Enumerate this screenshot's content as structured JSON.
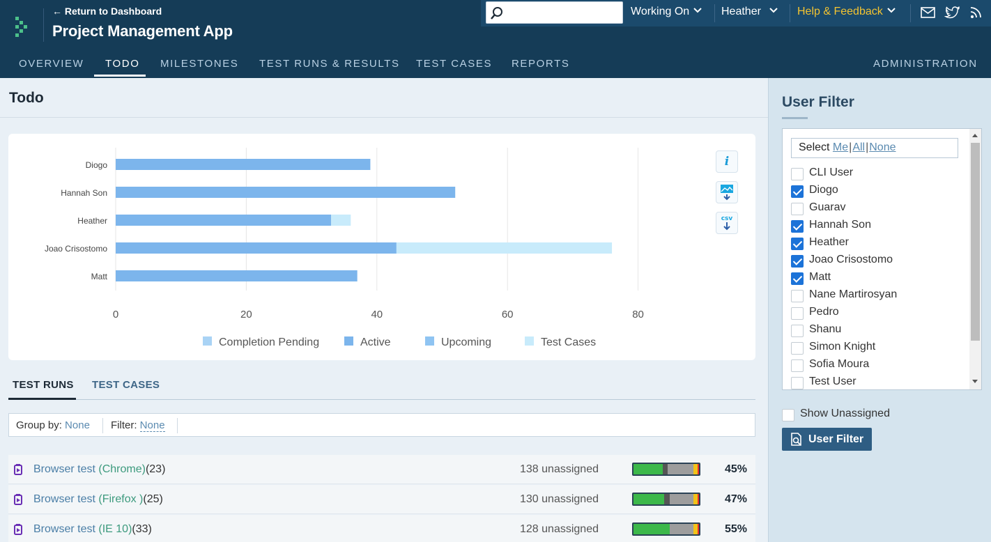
{
  "header": {
    "back_link": "← Return to Dashboard",
    "app_title": "Project Management App"
  },
  "topbar": {
    "search_placeholder": "",
    "working_on": "Working On",
    "user": "Heather",
    "help": "Help & Feedback",
    "icons": [
      "mail-icon",
      "twitter-icon",
      "rss-icon"
    ]
  },
  "nav": {
    "tabs": [
      {
        "label": "OVERVIEW",
        "active": false
      },
      {
        "label": "TODO",
        "active": true
      },
      {
        "label": "MILESTONES",
        "active": false
      },
      {
        "label": "TEST RUNS & RESULTS",
        "active": false
      },
      {
        "label": "TEST CASES",
        "active": false
      },
      {
        "label": "REPORTS",
        "active": false
      }
    ],
    "admin": "ADMINISTRATION"
  },
  "page": {
    "title": "Todo"
  },
  "chart_data": {
    "type": "bar",
    "orientation": "horizontal",
    "stacked": true,
    "categories": [
      "Diogo",
      "Hannah Son",
      "Heather",
      "Joao Crisostomo",
      "Matt"
    ],
    "series": [
      {
        "name": "Completion Pending",
        "color": "#a9d3f5",
        "values": [
          0,
          0,
          0,
          0,
          0
        ]
      },
      {
        "name": "Active",
        "color": "#7cb5ec",
        "values": [
          39,
          52,
          33,
          43,
          37
        ]
      },
      {
        "name": "Upcoming",
        "color": "#8fc4f2",
        "values": [
          0,
          0,
          0,
          0,
          0
        ]
      },
      {
        "name": "Test Cases",
        "color": "#c8ebfb",
        "values": [
          0,
          0,
          3,
          33,
          0
        ]
      }
    ],
    "xlim": [
      0,
      92
    ],
    "xticks": [
      "0",
      "20",
      "40",
      "60",
      "80"
    ],
    "legend_position": "bottom",
    "grid": true
  },
  "chart_tools": {
    "info": "i",
    "csv": "csv"
  },
  "subtabs": [
    {
      "label": "TEST RUNS",
      "active": true
    },
    {
      "label": "TEST CASES",
      "active": false
    }
  ],
  "filter_bar": {
    "group_label": "Group by:",
    "group_value": "None",
    "filter_label": "Filter:",
    "filter_value": "None"
  },
  "runs": [
    {
      "name": "Browser test",
      "browser": "(Chrome)",
      "count": "(23)",
      "unassigned": "138 unassigned",
      "pct": "45%",
      "bar": [
        45,
        7,
        40,
        6,
        2
      ]
    },
    {
      "name": "Browser test",
      "browser": "(Firefox )",
      "count": "(25)",
      "unassigned": "130 unassigned",
      "pct": "47%",
      "bar": [
        47,
        8,
        37,
        6,
        2
      ]
    },
    {
      "name": "Browser test",
      "browser": "(IE 10)",
      "count": "(33)",
      "unassigned": "128 unassigned",
      "pct": "55%",
      "bar": [
        55,
        0,
        37,
        6,
        2
      ]
    }
  ],
  "run_bar_colors": [
    "#3cb84a",
    "#555555",
    "#9d9d9d",
    "#f2c318",
    "#e5322c"
  ],
  "sidebar": {
    "title": "User Filter",
    "select_label": "Select",
    "select_me": "Me",
    "select_all": "All",
    "select_none": "None",
    "users": [
      {
        "name": "CLI User",
        "checked": false
      },
      {
        "name": "Diogo",
        "checked": true
      },
      {
        "name": "Guarav",
        "checked": false
      },
      {
        "name": "Hannah Son",
        "checked": true
      },
      {
        "name": "Heather",
        "checked": true
      },
      {
        "name": "Joao Crisostomo",
        "checked": true
      },
      {
        "name": "Matt",
        "checked": true
      },
      {
        "name": "Nane Martirosyan",
        "checked": false
      },
      {
        "name": "Pedro",
        "checked": false
      },
      {
        "name": "Shanu",
        "checked": false
      },
      {
        "name": "Simon Knight",
        "checked": false
      },
      {
        "name": "Sofia Moura",
        "checked": false
      },
      {
        "name": "Test User",
        "checked": false
      }
    ],
    "show_unassigned": "Show Unassigned",
    "filter_button": "User Filter"
  }
}
